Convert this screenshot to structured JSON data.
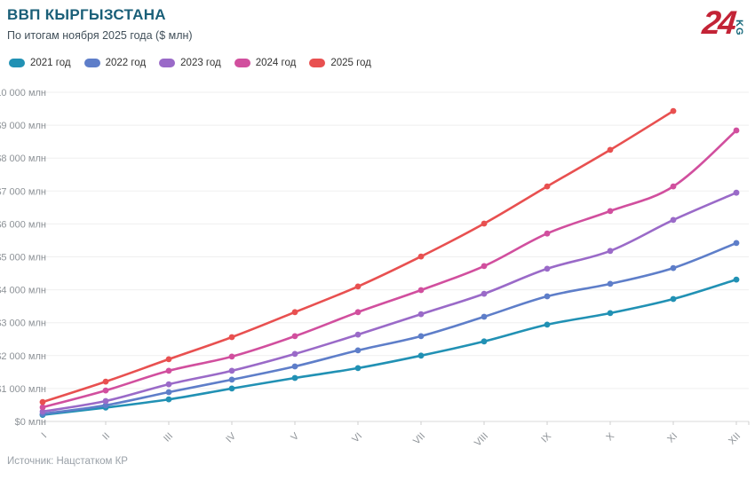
{
  "header": {
    "title": "ВВП КЫРГЫЗСТАНА",
    "subtitle": "По итогам ноября 2025 года ($ млн)"
  },
  "logo": {
    "number": "24",
    "suffix": "KG"
  },
  "source": "Источник: Нацстатком КР",
  "colors": {
    "title": "#1a5f78",
    "logo_red": "#c32336",
    "logo_teal": "#14677a",
    "grid": "#efefef",
    "axis": "#d8d8d8",
    "tick_text": "#8d9297"
  },
  "chart_data": {
    "type": "line",
    "title": "ВВП КЫРГЫЗСТАНА",
    "subtitle": "По итогам ноября 2025 года ($ млн)",
    "xlabel": "",
    "ylabel": "$ млн",
    "x_categories": [
      "I",
      "II",
      "III",
      "IV",
      "V",
      "VI",
      "VII",
      "VIII",
      "IX",
      "X",
      "XI",
      "XII"
    ],
    "y_ticks": [
      "$0 млн",
      "$1 000 млн",
      "$2 000 млн",
      "$3 000 млн",
      "$4 000 млн",
      "$5 000 млн",
      "$6 000 млн",
      "$7 000 млн",
      "$8 000 млн",
      "$9 000 млн",
      "$10 000 млн"
    ],
    "ylim": [
      0,
      10000
    ],
    "grid": "horizontal",
    "legend_position": "top-left",
    "series": [
      {
        "name": "2021 год",
        "color": "#2191b4",
        "values": [
          200,
          420,
          670,
          1000,
          1320,
          1620,
          2000,
          2430,
          2940,
          3290,
          3720,
          4310
        ]
      },
      {
        "name": "2022 год",
        "color": "#5e7ec9",
        "values": [
          230,
          490,
          890,
          1270,
          1670,
          2160,
          2590,
          3180,
          3800,
          4180,
          4660,
          5420
        ]
      },
      {
        "name": "2023 год",
        "color": "#9a6ac8",
        "values": [
          300,
          620,
          1130,
          1540,
          2050,
          2640,
          3260,
          3880,
          4640,
          5180,
          6120,
          6950
        ]
      },
      {
        "name": "2024 год",
        "color": "#d14f9e",
        "values": [
          430,
          940,
          1540,
          1970,
          2590,
          3320,
          3990,
          4720,
          5710,
          6390,
          7140,
          8840
        ]
      },
      {
        "name": "2025 год",
        "color": "#e85050",
        "values": [
          590,
          1210,
          1890,
          2560,
          3320,
          4100,
          5010,
          6010,
          7140,
          8250,
          9430
        ]
      }
    ]
  }
}
